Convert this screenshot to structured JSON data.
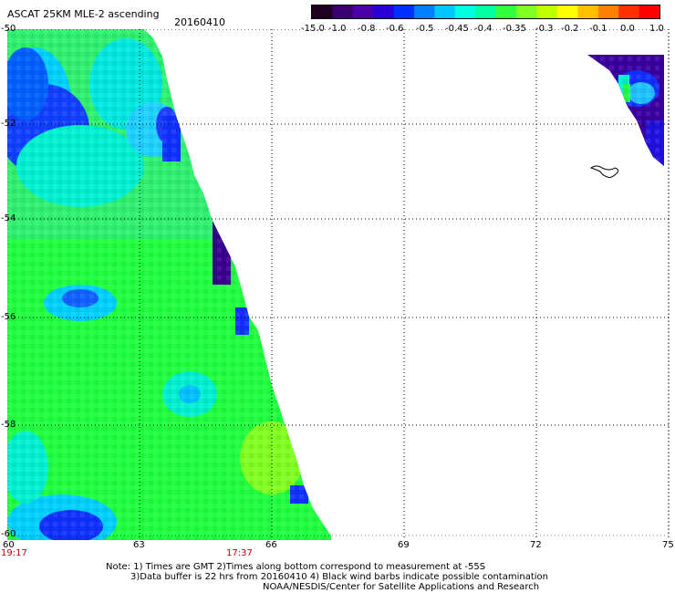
{
  "title": "ASCAT 25KM MLE-2 ascending",
  "date": "20160410",
  "colorbar": {
    "labels": [
      "-15.0",
      "-1.0",
      "-0.8",
      "-0.6",
      "-0.5",
      "-0.45",
      "-0.4",
      "-0.35",
      "-0.3",
      "-0.2",
      "-0.1",
      "0.0",
      "1.0"
    ],
    "colors": [
      "#200020",
      "#3a0070",
      "#4b00a8",
      "#2a00d8",
      "#0030ff",
      "#0080ff",
      "#00c8ff",
      "#00ffe0",
      "#00ffa0",
      "#30ff40",
      "#80ff20",
      "#c0ff00",
      "#ffff00",
      "#ffc000",
      "#ff8000",
      "#ff3000",
      "#ff0000"
    ]
  },
  "map": {
    "lat_labels": [
      "-50",
      "-52",
      "-54",
      "-56",
      "-58",
      "-60"
    ],
    "lon_labels": [
      "60",
      "63",
      "66",
      "69",
      "72",
      "75"
    ],
    "lat_range": [
      -60,
      -50
    ],
    "lon_range": [
      60,
      75
    ]
  },
  "times": {
    "left": "19:17",
    "middle": "17:37"
  },
  "notes": [
    "Note: 1) Times are GMT 2)Times along bottom correspond to measurement at -55S",
    "3)Data buffer is 22 hrs from 20160410 4) Black wind barbs indicate possible contamination",
    "NOAA/NESDIS/Center for Satellite Applications and Research"
  ]
}
